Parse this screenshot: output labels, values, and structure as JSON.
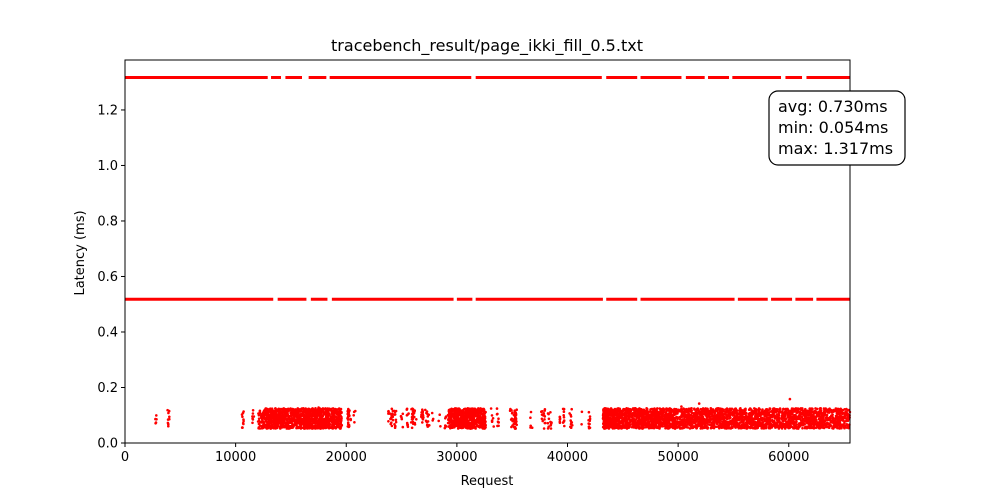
{
  "chart_data": {
    "type": "scatter",
    "title": "tracebench_result/page_ikki_fill_0.5.txt",
    "xlabel": "Request",
    "ylabel": "Latency (ms)",
    "xlim": [
      0,
      65536
    ],
    "ylim": [
      0,
      1.38
    ],
    "x_ticks": [
      0,
      10000,
      20000,
      30000,
      40000,
      50000,
      60000
    ],
    "x_tick_labels": [
      "0",
      "10000",
      "20000",
      "30000",
      "40000",
      "50000",
      "60000"
    ],
    "y_ticks": [
      0.0,
      0.2,
      0.4,
      0.6,
      0.8,
      1.0,
      1.2
    ],
    "y_tick_labels": [
      "0.0",
      "0.2",
      "0.4",
      "0.6",
      "0.8",
      "1.0",
      "1.2"
    ],
    "grid": false,
    "marker_color": "#ff0000",
    "series": [
      {
        "level": 1.317,
        "x_range": [
          0,
          65536
        ],
        "gaps": [
          [
            12900,
            13200
          ],
          [
            14100,
            14500
          ],
          [
            16000,
            16600
          ],
          [
            18200,
            18500
          ],
          [
            31300,
            31700
          ],
          [
            43100,
            43500
          ],
          [
            46300,
            46600
          ],
          [
            50300,
            50700
          ],
          [
            52400,
            52700
          ],
          [
            54600,
            54900
          ],
          [
            59300,
            59700
          ],
          [
            61200,
            61600
          ]
        ]
      },
      {
        "level": 0.518,
        "x_range": [
          0,
          65536
        ],
        "gaps": [
          [
            13400,
            13800
          ],
          [
            16400,
            16800
          ],
          [
            18300,
            18700
          ],
          [
            29700,
            30000
          ],
          [
            31400,
            31700
          ],
          [
            43200,
            43500
          ],
          [
            46300,
            46600
          ],
          [
            55100,
            55400
          ],
          [
            58100,
            58400
          ],
          [
            60300,
            60600
          ],
          [
            62200,
            62500
          ]
        ]
      },
      {
        "low_band_y_range": [
          0.052,
          0.125
        ],
        "clusters": [
          [
            12400,
            19600,
            1
          ],
          [
            29200,
            32600,
            1
          ],
          [
            43200,
            48600,
            1
          ],
          [
            48600,
            63200,
            0.75
          ],
          [
            63200,
            65536,
            0.6
          ]
        ],
        "sparse_regions": [
          [
            300,
            12300,
            0.08
          ],
          [
            19600,
            29200,
            0.35
          ],
          [
            32600,
            43200,
            0.3
          ]
        ],
        "outliers": [
          [
            60100,
            0.158
          ],
          [
            50300,
            0.131
          ],
          [
            51900,
            0.142
          ],
          [
            17500,
            0.128
          ]
        ]
      }
    ],
    "stats_box": {
      "lines": [
        "avg: 0.730ms",
        "min: 0.054ms",
        "max: 1.317ms"
      ],
      "placement": "top-right"
    }
  }
}
